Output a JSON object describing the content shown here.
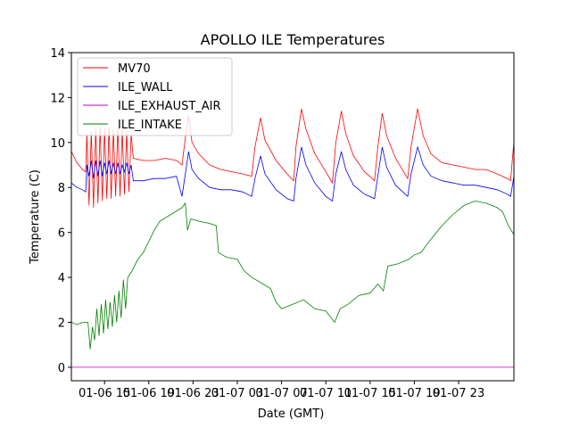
{
  "chart_data": {
    "type": "line",
    "title": "APOLLO ILE Temperatures",
    "xlabel": "Date (GMT)",
    "ylabel": "Temperature (C)",
    "x_units": "hours since 01-06 00:00 GMT",
    "xlim": [
      12,
      52
    ],
    "ylim": [
      -0.6,
      14
    ],
    "xticks": [
      {
        "value": 15,
        "label": "01-06 15"
      },
      {
        "value": 19,
        "label": "01-06 19"
      },
      {
        "value": 23,
        "label": "01-06 23"
      },
      {
        "value": 27,
        "label": "01-07 03"
      },
      {
        "value": 31,
        "label": "01-07 07"
      },
      {
        "value": 35,
        "label": "01-07 11"
      },
      {
        "value": 39,
        "label": "01-07 15"
      },
      {
        "value": 43,
        "label": "01-07 19"
      },
      {
        "value": 47,
        "label": "01-07 23"
      }
    ],
    "yticks": [
      0,
      2,
      4,
      6,
      8,
      10,
      12,
      14
    ],
    "grid": false,
    "legend_position": "top-left",
    "series": [
      {
        "name": "MV70",
        "color": "#ff0000",
        "points": [
          [
            12,
            9.6
          ],
          [
            12.5,
            9.1
          ],
          [
            13,
            8.8
          ],
          [
            13.3,
            8.7
          ],
          [
            13.4,
            10.4
          ],
          [
            13.6,
            7.2
          ],
          [
            13.8,
            10.5
          ],
          [
            14,
            7.1
          ],
          [
            14.2,
            10.6
          ],
          [
            14.4,
            7.3
          ],
          [
            14.6,
            10.7
          ],
          [
            14.8,
            7.4
          ],
          [
            15,
            10.6
          ],
          [
            15.2,
            7.5
          ],
          [
            15.4,
            10.7
          ],
          [
            15.6,
            7.5
          ],
          [
            15.8,
            10.6
          ],
          [
            16,
            7.6
          ],
          [
            16.2,
            10.7
          ],
          [
            16.4,
            7.6
          ],
          [
            16.6,
            10.6
          ],
          [
            16.8,
            7.7
          ],
          [
            17,
            10.5
          ],
          [
            17.2,
            7.8
          ],
          [
            17.4,
            10.4
          ],
          [
            17.6,
            9.3
          ],
          [
            18.5,
            9.2
          ],
          [
            19.5,
            9.2
          ],
          [
            20.5,
            9.3
          ],
          [
            21.5,
            9.2
          ],
          [
            22,
            9.0
          ],
          [
            22.3,
            10.2
          ],
          [
            22.6,
            11.2
          ],
          [
            22.9,
            10.0
          ],
          [
            23.5,
            9.5
          ],
          [
            24.5,
            9.0
          ],
          [
            25.5,
            8.8
          ],
          [
            26.5,
            8.7
          ],
          [
            27.5,
            8.6
          ],
          [
            28.3,
            8.5
          ],
          [
            28.6,
            9.8
          ],
          [
            29.1,
            11.1
          ],
          [
            29.5,
            10.1
          ],
          [
            30.5,
            9.2
          ],
          [
            31.5,
            8.6
          ],
          [
            32.1,
            8.3
          ],
          [
            32.3,
            9.8
          ],
          [
            32.8,
            11.5
          ],
          [
            33.2,
            10.6
          ],
          [
            34,
            9.5
          ],
          [
            35,
            8.7
          ],
          [
            35.6,
            8.2
          ],
          [
            35.9,
            10.0
          ],
          [
            36.4,
            11.4
          ],
          [
            36.8,
            10.4
          ],
          [
            37.5,
            9.4
          ],
          [
            38.5,
            8.7
          ],
          [
            39.4,
            8.3
          ],
          [
            39.7,
            9.8
          ],
          [
            40.1,
            11.3
          ],
          [
            40.5,
            10.3
          ],
          [
            41.3,
            9.3
          ],
          [
            42.4,
            8.4
          ],
          [
            42.7,
            9.8
          ],
          [
            43.3,
            11.5
          ],
          [
            43.8,
            10.3
          ],
          [
            44.5,
            9.5
          ],
          [
            45.5,
            9.1
          ],
          [
            46.5,
            9.0
          ],
          [
            47.5,
            8.9
          ],
          [
            48.5,
            8.8
          ],
          [
            49.5,
            8.8
          ],
          [
            50.5,
            8.6
          ],
          [
            51.4,
            8.4
          ],
          [
            51.7,
            8.3
          ],
          [
            51.9,
            9.5
          ],
          [
            52,
            10.0
          ]
        ]
      },
      {
        "name": "ILE_WALL",
        "color": "#0000ff",
        "points": [
          [
            12,
            8.2
          ],
          [
            12.5,
            8.0
          ],
          [
            13,
            7.9
          ],
          [
            13.3,
            7.8
          ],
          [
            13.4,
            9.0
          ],
          [
            13.6,
            8.5
          ],
          [
            13.8,
            9.2
          ],
          [
            14,
            8.4
          ],
          [
            14.2,
            9.2
          ],
          [
            14.4,
            8.5
          ],
          [
            14.6,
            9.2
          ],
          [
            14.8,
            8.5
          ],
          [
            15,
            9.1
          ],
          [
            15.2,
            8.6
          ],
          [
            15.4,
            9.2
          ],
          [
            15.6,
            8.6
          ],
          [
            15.8,
            9.1
          ],
          [
            16,
            8.6
          ],
          [
            16.2,
            9.1
          ],
          [
            16.4,
            8.6
          ],
          [
            16.6,
            9.0
          ],
          [
            16.8,
            8.7
          ],
          [
            17,
            9.1
          ],
          [
            17.2,
            8.6
          ],
          [
            17.4,
            9.0
          ],
          [
            17.6,
            8.3
          ],
          [
            18.5,
            8.3
          ],
          [
            19.5,
            8.4
          ],
          [
            20.5,
            8.4
          ],
          [
            21.5,
            8.5
          ],
          [
            22,
            7.6
          ],
          [
            22.3,
            8.6
          ],
          [
            22.6,
            9.6
          ],
          [
            22.9,
            8.8
          ],
          [
            23.5,
            8.4
          ],
          [
            24.5,
            8.0
          ],
          [
            25.5,
            7.9
          ],
          [
            26.5,
            7.9
          ],
          [
            27.5,
            7.8
          ],
          [
            28.3,
            7.6
          ],
          [
            28.6,
            8.4
          ],
          [
            29.1,
            9.4
          ],
          [
            29.5,
            8.6
          ],
          [
            30.5,
            7.9
          ],
          [
            31.5,
            7.5
          ],
          [
            32.1,
            7.4
          ],
          [
            32.3,
            8.4
          ],
          [
            32.8,
            9.8
          ],
          [
            33.2,
            9.0
          ],
          [
            34,
            8.2
          ],
          [
            35,
            7.6
          ],
          [
            35.6,
            7.4
          ],
          [
            35.9,
            8.6
          ],
          [
            36.4,
            9.6
          ],
          [
            36.8,
            8.8
          ],
          [
            37.5,
            8.1
          ],
          [
            38.5,
            7.7
          ],
          [
            39.4,
            7.5
          ],
          [
            39.7,
            8.5
          ],
          [
            40.1,
            9.8
          ],
          [
            40.5,
            8.9
          ],
          [
            41.3,
            8.1
          ],
          [
            42.4,
            7.6
          ],
          [
            42.7,
            8.6
          ],
          [
            43.3,
            9.8
          ],
          [
            43.8,
            9.0
          ],
          [
            44.5,
            8.5
          ],
          [
            45.5,
            8.3
          ],
          [
            46.5,
            8.2
          ],
          [
            47.5,
            8.1
          ],
          [
            48.5,
            8.1
          ],
          [
            49.5,
            8.0
          ],
          [
            50.5,
            7.9
          ],
          [
            51.4,
            7.7
          ],
          [
            51.7,
            7.6
          ],
          [
            51.9,
            8.2
          ],
          [
            52,
            8.5
          ]
        ]
      },
      {
        "name": "ILE_EXHAUST_AIR",
        "color": "#bf00bf",
        "points": [
          [
            12,
            0
          ],
          [
            52,
            0
          ]
        ]
      },
      {
        "name": "ILE_INTAKE",
        "color": "#008000",
        "points": [
          [
            12,
            2.0
          ],
          [
            12.5,
            1.9
          ],
          [
            13,
            2.0
          ],
          [
            13.5,
            2.0
          ],
          [
            13.7,
            0.8
          ],
          [
            13.9,
            1.8
          ],
          [
            14.1,
            1.2
          ],
          [
            14.3,
            2.6
          ],
          [
            14.5,
            1.4
          ],
          [
            14.7,
            2.8
          ],
          [
            14.9,
            1.5
          ],
          [
            15.1,
            3.0
          ],
          [
            15.3,
            1.7
          ],
          [
            15.5,
            2.9
          ],
          [
            15.7,
            1.8
          ],
          [
            15.9,
            3.2
          ],
          [
            16.1,
            2.0
          ],
          [
            16.3,
            3.4
          ],
          [
            16.5,
            2.2
          ],
          [
            16.7,
            3.9
          ],
          [
            16.9,
            2.6
          ],
          [
            17.1,
            4.0
          ],
          [
            17.5,
            4.3
          ],
          [
            18,
            4.8
          ],
          [
            18.5,
            5.1
          ],
          [
            19,
            5.6
          ],
          [
            19.5,
            6.1
          ],
          [
            20,
            6.5
          ],
          [
            21,
            6.8
          ],
          [
            22,
            7.1
          ],
          [
            22.3,
            7.3
          ],
          [
            22.5,
            6.1
          ],
          [
            22.8,
            6.6
          ],
          [
            23.5,
            6.5
          ],
          [
            24.5,
            6.4
          ],
          [
            25.1,
            6.3
          ],
          [
            25.3,
            5.1
          ],
          [
            26,
            4.9
          ],
          [
            27,
            4.8
          ],
          [
            27.6,
            4.3
          ],
          [
            28.3,
            4.0
          ],
          [
            29,
            3.8
          ],
          [
            30,
            3.5
          ],
          [
            30.5,
            2.9
          ],
          [
            31,
            2.6
          ],
          [
            32,
            2.8
          ],
          [
            33,
            3.0
          ],
          [
            34,
            2.6
          ],
          [
            35,
            2.5
          ],
          [
            35.8,
            2.0
          ],
          [
            36.3,
            2.6
          ],
          [
            37,
            2.8
          ],
          [
            38,
            3.2
          ],
          [
            39,
            3.3
          ],
          [
            39.7,
            3.7
          ],
          [
            40.2,
            3.4
          ],
          [
            40.6,
            4.5
          ],
          [
            41.5,
            4.6
          ],
          [
            42.5,
            4.8
          ],
          [
            43,
            5.0
          ],
          [
            43.6,
            5.1
          ],
          [
            44.5,
            5.7
          ],
          [
            45.5,
            6.3
          ],
          [
            46.5,
            6.8
          ],
          [
            47.5,
            7.2
          ],
          [
            48.5,
            7.4
          ],
          [
            49.5,
            7.3
          ],
          [
            50.5,
            7.1
          ],
          [
            51,
            6.9
          ],
          [
            51.5,
            6.3
          ],
          [
            52,
            5.9
          ]
        ]
      }
    ]
  }
}
